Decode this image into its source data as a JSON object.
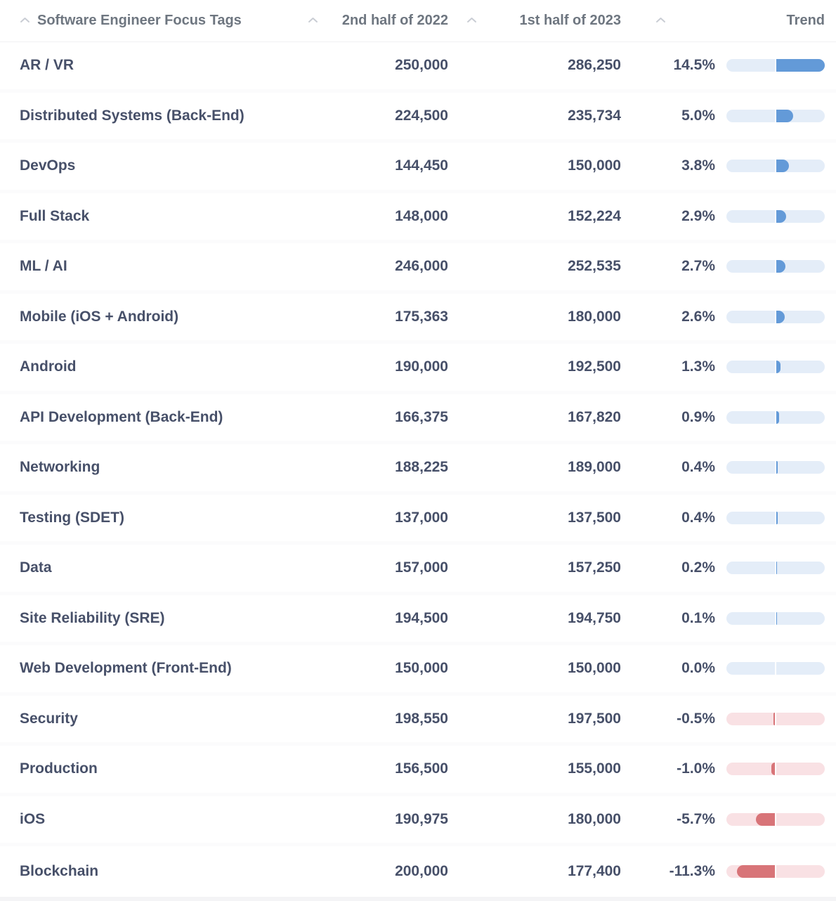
{
  "table": {
    "columns": [
      {
        "label": "Software Engineer Focus Tags",
        "sortable": true
      },
      {
        "label": "2nd half of 2022",
        "sortable": true
      },
      {
        "label": "1st half of 2023",
        "sortable": true
      },
      {
        "label": "",
        "sortable": true
      },
      {
        "label": "Trend",
        "sortable": false
      }
    ],
    "rows": [
      {
        "tag": "AR / VR",
        "h2_2022": "250,000",
        "h1_2023": "286,250",
        "change_pct_label": "14.5%",
        "change_pct": 14.5
      },
      {
        "tag": "Distributed Systems (Back-End)",
        "h2_2022": "224,500",
        "h1_2023": "235,734",
        "change_pct_label": "5.0%",
        "change_pct": 5.0
      },
      {
        "tag": "DevOps",
        "h2_2022": "144,450",
        "h1_2023": "150,000",
        "change_pct_label": "3.8%",
        "change_pct": 3.8
      },
      {
        "tag": "Full Stack",
        "h2_2022": "148,000",
        "h1_2023": "152,224",
        "change_pct_label": "2.9%",
        "change_pct": 2.9
      },
      {
        "tag": "ML / AI",
        "h2_2022": "246,000",
        "h1_2023": "252,535",
        "change_pct_label": "2.7%",
        "change_pct": 2.7
      },
      {
        "tag": "Mobile (iOS + Android)",
        "h2_2022": "175,363",
        "h1_2023": "180,000",
        "change_pct_label": "2.6%",
        "change_pct": 2.6
      },
      {
        "tag": "Android",
        "h2_2022": "190,000",
        "h1_2023": "192,500",
        "change_pct_label": "1.3%",
        "change_pct": 1.3
      },
      {
        "tag": "API Development (Back-End)",
        "h2_2022": "166,375",
        "h1_2023": "167,820",
        "change_pct_label": "0.9%",
        "change_pct": 0.9
      },
      {
        "tag": "Networking",
        "h2_2022": "188,225",
        "h1_2023": "189,000",
        "change_pct_label": "0.4%",
        "change_pct": 0.4
      },
      {
        "tag": "Testing (SDET)",
        "h2_2022": "137,000",
        "h1_2023": "137,500",
        "change_pct_label": "0.4%",
        "change_pct": 0.4
      },
      {
        "tag": "Data",
        "h2_2022": "157,000",
        "h1_2023": "157,250",
        "change_pct_label": "0.2%",
        "change_pct": 0.2
      },
      {
        "tag": "Site Reliability (SRE)",
        "h2_2022": "194,500",
        "h1_2023": "194,750",
        "change_pct_label": "0.1%",
        "change_pct": 0.1
      },
      {
        "tag": "Web Development (Front-End)",
        "h2_2022": "150,000",
        "h1_2023": "150,000",
        "change_pct_label": "0.0%",
        "change_pct": 0.0
      },
      {
        "tag": "Security",
        "h2_2022": "198,550",
        "h1_2023": "197,500",
        "change_pct_label": "-0.5%",
        "change_pct": -0.5
      },
      {
        "tag": "Production",
        "h2_2022": "156,500",
        "h1_2023": "155,000",
        "change_pct_label": "-1.0%",
        "change_pct": -1.0
      },
      {
        "tag": "iOS",
        "h2_2022": "190,975",
        "h1_2023": "180,000",
        "change_pct_label": "-5.7%",
        "change_pct": -5.7
      },
      {
        "tag": "Blockchain",
        "h2_2022": "200,000",
        "h1_2023": "177,400",
        "change_pct_label": "-11.3%",
        "change_pct": -11.3
      }
    ]
  },
  "trend_bar": {
    "max_abs_pct": 14.5,
    "positive_fill": "#639ad8",
    "positive_track": "#e4edf8",
    "negative_fill": "#d87478",
    "negative_track": "#f9e1e4"
  },
  "colors": {
    "row_text": "#475069",
    "header_text": "#6e7680",
    "sort_caret": "#c9cdd4"
  }
}
